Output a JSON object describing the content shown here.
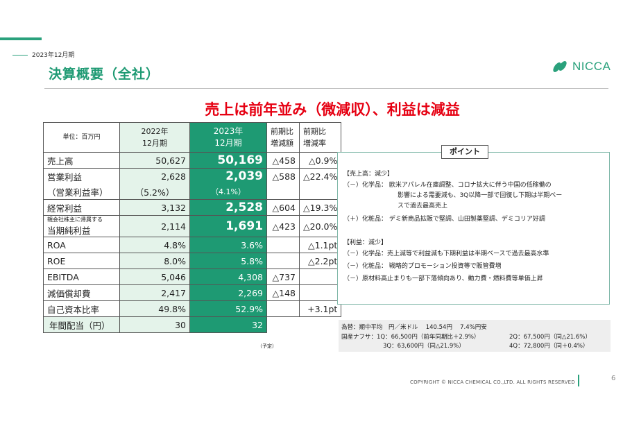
{
  "header": {
    "date": "2023年12月期",
    "title": "決算概要（全社）",
    "logo_text": "NICCA",
    "headline": "売上は前年並み（微減収）、利益は減益"
  },
  "table": {
    "header": {
      "unit": "単位：百万円",
      "col2022_l1": "2022年",
      "col2022_l2": "12月期",
      "col2023_l1": "2023年",
      "col2023_l2": "12月期",
      "diff_l1": "前期比",
      "diff_l2": "増減額",
      "rate_l1": "前期比",
      "rate_l2": "増減率"
    },
    "rows": [
      {
        "label": "売上高",
        "v2022": "50,627",
        "v2023": "50,169",
        "diff": "△458",
        "rate": "△0.9%"
      },
      {
        "label": "営業利益",
        "v2022": "2,628",
        "v2023": "2,039",
        "diff": "△588",
        "rate": "△22.4%"
      },
      {
        "label": "（営業利益率）",
        "v2022": "（5.2%）",
        "v2023": "（4.1%）",
        "diff": "",
        "rate": ""
      },
      {
        "label": "経常利益",
        "v2022": "3,132",
        "v2023": "2,528",
        "diff": "△604",
        "rate": "△19.3%"
      },
      {
        "label_small": "親会社株主に帰属する",
        "label": "当期純利益",
        "v2022": "2,114",
        "v2023": "1,691",
        "diff": "△423",
        "rate": "△20.0%"
      },
      {
        "label": "ROA",
        "v2022": "4.8%",
        "v2023": "3.6%",
        "diff": "",
        "rate": "△1.1pt"
      },
      {
        "label": "ROE",
        "v2022": "8.0%",
        "v2023": "5.8%",
        "diff": "",
        "rate": "△2.2pt"
      },
      {
        "label": "EBITDA",
        "v2022": "5,046",
        "v2023": "4,308",
        "diff": "△737",
        "rate": ""
      },
      {
        "label": "減価償却費",
        "v2022": "2,417",
        "v2023": "2,269",
        "diff": "△148",
        "rate": ""
      },
      {
        "label": "自己資本比率",
        "v2022": "49.8%",
        "v2023": "52.9%",
        "diff": "",
        "rate": "+3.1pt"
      },
      {
        "label": "年間配当（円）",
        "v2022": "30",
        "v2023": "32",
        "diff": "",
        "rate": ""
      }
    ],
    "plan_note": "（予定）"
  },
  "points": {
    "title": "ポイント",
    "sales_head": "【売上高：減少】",
    "s1": "（－）化学品：  欧米アパレル在庫調整、コロナ拡大に伴う中国の低稼働の",
    "s1b": "影響による需要減も、3Q以降一部で回復し下期は半期ベー",
    "s1c": "スで過去最高売上",
    "s2": "（＋）化粧品：  デミ新商品拡販で堅調、山田製薬堅調、デミコリア好調",
    "profit_head": "【利益：減少】",
    "p1": "（－）化学品：売上減等で利益減も下期利益は半期ベースで過去最高水準",
    "p2": "（－）化粧品：  戦略的プロモーション投資等で販管費増",
    "p3": "（－）原材料高止まりも一部下落傾向あり、動力費・燃料費等単価上昇"
  },
  "fx": {
    "line1": "為替：期中平均　円／米ドル　 140.54円　 7.4%円安",
    "line2a": "国産ナフサ：1Q：66,500円（前年同期比＋2.9%）",
    "line2b": "2Q：67,500円（同△21.6%）",
    "line3a": "3Q：63,600円（同△21.9%）",
    "line3b": "4Q：72,800円（同＋0.4%）"
  },
  "footer": {
    "copyright": "COPYRIGHT © NICCA CHEMICAL CO.,LTD. ALL RIGHTS RESERVED",
    "page": "6"
  },
  "colors": {
    "brand_green": "#1e9a73",
    "light_green": "#e4f3ea",
    "headline_red": "#e60012"
  }
}
